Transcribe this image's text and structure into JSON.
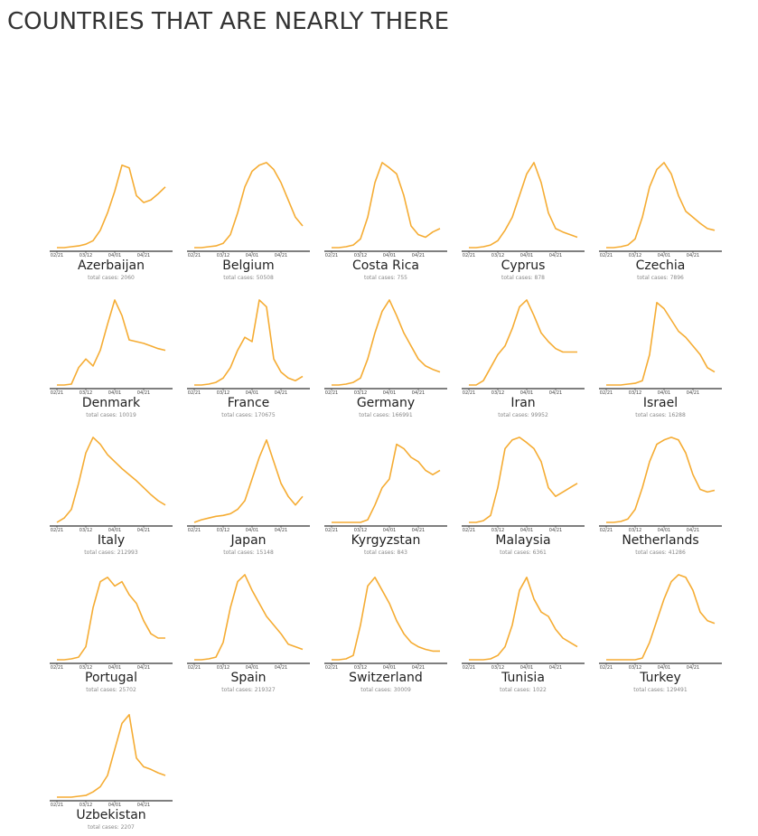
{
  "title": "COUNTRIES THAT ARE NEARLY THERE",
  "chart_data": [
    {
      "type": "line",
      "title": "Azerbaijan",
      "subtitle": "total cases: 2060",
      "color": "#f5ac33",
      "ylim": [
        0,
        100
      ],
      "x": [
        "02/21",
        null,
        null,
        null,
        "03/12",
        null,
        null,
        null,
        "04/01",
        null,
        null,
        null,
        "04/21",
        null,
        null,
        null
      ],
      "values": [
        0,
        0,
        1,
        2,
        4,
        8,
        20,
        40,
        65,
        95,
        92,
        60,
        52,
        55,
        62,
        70
      ]
    },
    {
      "type": "line",
      "title": "Belgium",
      "subtitle": "total cases: 50508",
      "color": "#f5ac33",
      "ylim": [
        0,
        100
      ],
      "x": [
        "02/21",
        null,
        null,
        null,
        "03/12",
        null,
        null,
        null,
        "04/01",
        null,
        null,
        null,
        "04/21",
        null,
        null,
        null
      ],
      "values": [
        0,
        0,
        1,
        2,
        5,
        15,
        40,
        70,
        88,
        95,
        98,
        90,
        75,
        55,
        35,
        25
      ]
    },
    {
      "type": "line",
      "title": "Costa Rica",
      "subtitle": "total cases: 755",
      "color": "#f5ac33",
      "ylim": [
        0,
        100
      ],
      "x": [
        "02/21",
        null,
        null,
        null,
        "03/12",
        null,
        null,
        null,
        "04/01",
        null,
        null,
        null,
        "04/21",
        null,
        null,
        null
      ],
      "values": [
        0,
        0,
        1,
        3,
        10,
        35,
        75,
        98,
        92,
        85,
        60,
        25,
        15,
        12,
        18,
        22
      ]
    },
    {
      "type": "line",
      "title": "Cyprus",
      "subtitle": "total cases: 878",
      "color": "#f5ac33",
      "ylim": [
        0,
        100
      ],
      "x": [
        "02/21",
        null,
        null,
        null,
        "03/12",
        null,
        null,
        null,
        "04/01",
        null,
        null,
        null,
        "04/21",
        null,
        null,
        null
      ],
      "values": [
        0,
        0,
        1,
        3,
        8,
        20,
        35,
        60,
        85,
        98,
        75,
        40,
        22,
        18,
        15,
        12
      ]
    },
    {
      "type": "line",
      "title": "Czechia",
      "subtitle": "total cases: 7896",
      "color": "#f5ac33",
      "ylim": [
        0,
        100
      ],
      "x": [
        "02/21",
        null,
        null,
        null,
        "03/12",
        null,
        null,
        null,
        "04/01",
        null,
        null,
        null,
        "04/21",
        null,
        null,
        null
      ],
      "values": [
        0,
        0,
        1,
        3,
        10,
        35,
        70,
        90,
        98,
        85,
        60,
        42,
        35,
        28,
        22,
        20
      ]
    },
    {
      "type": "line",
      "title": "Denmark",
      "subtitle": "total cases: 10019",
      "color": "#f5ac33",
      "ylim": [
        0,
        100
      ],
      "x": [
        "02/21",
        null,
        null,
        null,
        "03/12",
        null,
        null,
        null,
        "04/01",
        null,
        null,
        null,
        "04/21",
        null,
        null,
        null
      ],
      "values": [
        0,
        0,
        1,
        20,
        30,
        22,
        40,
        70,
        98,
        80,
        52,
        50,
        48,
        45,
        42,
        40
      ]
    },
    {
      "type": "line",
      "title": "France",
      "subtitle": "total cases: 170675",
      "color": "#f5ac33",
      "ylim": [
        0,
        100
      ],
      "x": [
        "02/21",
        null,
        null,
        null,
        "03/12",
        null,
        null,
        null,
        "04/01",
        null,
        null,
        null,
        "04/21",
        null,
        null,
        null
      ],
      "values": [
        0,
        0,
        1,
        3,
        8,
        20,
        40,
        55,
        50,
        98,
        90,
        30,
        15,
        8,
        5,
        10
      ]
    },
    {
      "type": "line",
      "title": "Germany",
      "subtitle": "total cases: 166991",
      "color": "#f5ac33",
      "ylim": [
        0,
        100
      ],
      "x": [
        "02/21",
        null,
        null,
        null,
        "03/12",
        null,
        null,
        null,
        "04/01",
        null,
        null,
        null,
        "04/21",
        null,
        null,
        null
      ],
      "values": [
        0,
        0,
        1,
        3,
        8,
        30,
        60,
        85,
        98,
        80,
        60,
        45,
        30,
        22,
        18,
        15
      ]
    },
    {
      "type": "line",
      "title": "Iran",
      "subtitle": "total cases: 99952",
      "color": "#f5ac33",
      "ylim": [
        0,
        100
      ],
      "x": [
        "02/21",
        null,
        null,
        null,
        "03/12",
        null,
        null,
        null,
        "04/01",
        null,
        null,
        null,
        "04/21",
        null,
        null,
        null
      ],
      "values": [
        0,
        0,
        5,
        20,
        35,
        45,
        65,
        90,
        98,
        80,
        60,
        50,
        42,
        38,
        38,
        38
      ]
    },
    {
      "type": "line",
      "title": "Israel",
      "subtitle": "total cases: 16288",
      "color": "#f5ac33",
      "ylim": [
        0,
        100
      ],
      "x": [
        "02/21",
        null,
        null,
        null,
        "03/12",
        null,
        null,
        null,
        "04/01",
        null,
        null,
        null,
        "04/21",
        null,
        null,
        null
      ],
      "values": [
        0,
        0,
        0,
        1,
        2,
        5,
        35,
        95,
        88,
        75,
        62,
        55,
        45,
        35,
        20,
        15
      ]
    },
    {
      "type": "line",
      "title": "Italy",
      "subtitle": "total cases: 212993",
      "color": "#f5ac33",
      "ylim": [
        0,
        100
      ],
      "x": [
        "02/21",
        null,
        null,
        null,
        "03/12",
        null,
        null,
        null,
        "04/01",
        null,
        null,
        null,
        "04/21",
        null,
        null,
        null
      ],
      "values": [
        0,
        5,
        15,
        45,
        80,
        98,
        90,
        78,
        70,
        62,
        55,
        48,
        40,
        32,
        25,
        20
      ]
    },
    {
      "type": "line",
      "title": "Japan",
      "subtitle": "total cases: 15148",
      "color": "#f5ac33",
      "ylim": [
        0,
        100
      ],
      "x": [
        "02/21",
        null,
        null,
        null,
        "03/12",
        null,
        null,
        null,
        "04/01",
        null,
        null,
        null,
        "04/21",
        null,
        null,
        null
      ],
      "values": [
        0,
        3,
        5,
        7,
        8,
        10,
        15,
        25,
        50,
        75,
        95,
        70,
        45,
        30,
        20,
        30
      ]
    },
    {
      "type": "line",
      "title": "Kyrgyzstan",
      "subtitle": "total cases: 843",
      "color": "#f5ac33",
      "ylim": [
        0,
        100
      ],
      "x": [
        "02/21",
        null,
        null,
        null,
        "03/12",
        null,
        null,
        null,
        "04/01",
        null,
        null,
        null,
        "04/21",
        null,
        null,
        null
      ],
      "values": [
        0,
        0,
        0,
        0,
        0,
        3,
        20,
        40,
        50,
        90,
        85,
        75,
        70,
        60,
        55,
        60
      ]
    },
    {
      "type": "line",
      "title": "Malaysia",
      "subtitle": "total cases: 6361",
      "color": "#f5ac33",
      "ylim": [
        0,
        100
      ],
      "x": [
        "02/21",
        null,
        null,
        null,
        "03/12",
        null,
        null,
        null,
        "04/01",
        null,
        null,
        null,
        "04/21",
        null,
        null,
        null
      ],
      "values": [
        0,
        0,
        2,
        8,
        40,
        85,
        95,
        98,
        92,
        85,
        70,
        40,
        30,
        35,
        40,
        45
      ]
    },
    {
      "type": "line",
      "title": "Netherlands",
      "subtitle": "total cases: 41286",
      "color": "#f5ac33",
      "ylim": [
        0,
        100
      ],
      "x": [
        "02/21",
        null,
        null,
        null,
        "03/12",
        null,
        null,
        null,
        "04/01",
        null,
        null,
        null,
        "04/21",
        null,
        null,
        null
      ],
      "values": [
        0,
        0,
        1,
        4,
        15,
        40,
        70,
        90,
        95,
        98,
        95,
        80,
        55,
        38,
        35,
        37
      ]
    },
    {
      "type": "line",
      "title": "Portugal",
      "subtitle": "total cases: 25702",
      "color": "#f5ac33",
      "ylim": [
        0,
        100
      ],
      "x": [
        "02/21",
        null,
        null,
        null,
        "03/12",
        null,
        null,
        null,
        "04/01",
        null,
        null,
        null,
        "04/21",
        null,
        null,
        null
      ],
      "values": [
        0,
        0,
        1,
        3,
        15,
        60,
        90,
        95,
        85,
        90,
        75,
        65,
        45,
        30,
        25,
        25
      ]
    },
    {
      "type": "line",
      "title": "Spain",
      "subtitle": "total cases: 219327",
      "color": "#f5ac33",
      "ylim": [
        0,
        100
      ],
      "x": [
        "02/21",
        null,
        null,
        null,
        "03/12",
        null,
        null,
        null,
        "04/01",
        null,
        null,
        null,
        "04/21",
        null,
        null,
        null
      ],
      "values": [
        0,
        0,
        1,
        3,
        20,
        60,
        90,
        98,
        80,
        65,
        50,
        40,
        30,
        18,
        15,
        12
      ]
    },
    {
      "type": "line",
      "title": "Switzerland",
      "subtitle": "total cases: 30009",
      "color": "#f5ac33",
      "ylim": [
        0,
        100
      ],
      "x": [
        "02/21",
        null,
        null,
        null,
        "03/12",
        null,
        null,
        null,
        "04/01",
        null,
        null,
        null,
        "04/21",
        null,
        null,
        null
      ],
      "values": [
        0,
        0,
        1,
        5,
        40,
        85,
        95,
        80,
        65,
        45,
        30,
        20,
        15,
        12,
        10,
        10
      ]
    },
    {
      "type": "line",
      "title": "Tunisia",
      "subtitle": "total cases: 1022",
      "color": "#f5ac33",
      "ylim": [
        0,
        100
      ],
      "x": [
        "02/21",
        null,
        null,
        null,
        "03/12",
        null,
        null,
        null,
        "04/01",
        null,
        null,
        null,
        "04/21",
        null,
        null,
        null
      ],
      "values": [
        0,
        0,
        0,
        1,
        5,
        15,
        40,
        80,
        95,
        70,
        55,
        50,
        35,
        25,
        20,
        15
      ]
    },
    {
      "type": "line",
      "title": "Turkey",
      "subtitle": "total cases: 129491",
      "color": "#f5ac33",
      "ylim": [
        0,
        100
      ],
      "x": [
        "02/21",
        null,
        null,
        null,
        "03/12",
        null,
        null,
        null,
        "04/01",
        null,
        null,
        null,
        "04/21",
        null,
        null,
        null
      ],
      "values": [
        0,
        0,
        0,
        0,
        0,
        2,
        20,
        45,
        70,
        90,
        98,
        95,
        80,
        55,
        45,
        42
      ]
    },
    {
      "type": "line",
      "title": "Uzbekistan",
      "subtitle": "total cases: 2207",
      "color": "#f5ac33",
      "ylim": [
        0,
        100
      ],
      "x": [
        "02/21",
        null,
        null,
        null,
        "03/12",
        null,
        null,
        null,
        "04/01",
        null,
        null,
        null,
        "04/21",
        null,
        null,
        null
      ],
      "values": [
        0,
        0,
        0,
        1,
        2,
        6,
        12,
        25,
        55,
        85,
        95,
        45,
        35,
        32,
        28,
        25
      ]
    }
  ]
}
